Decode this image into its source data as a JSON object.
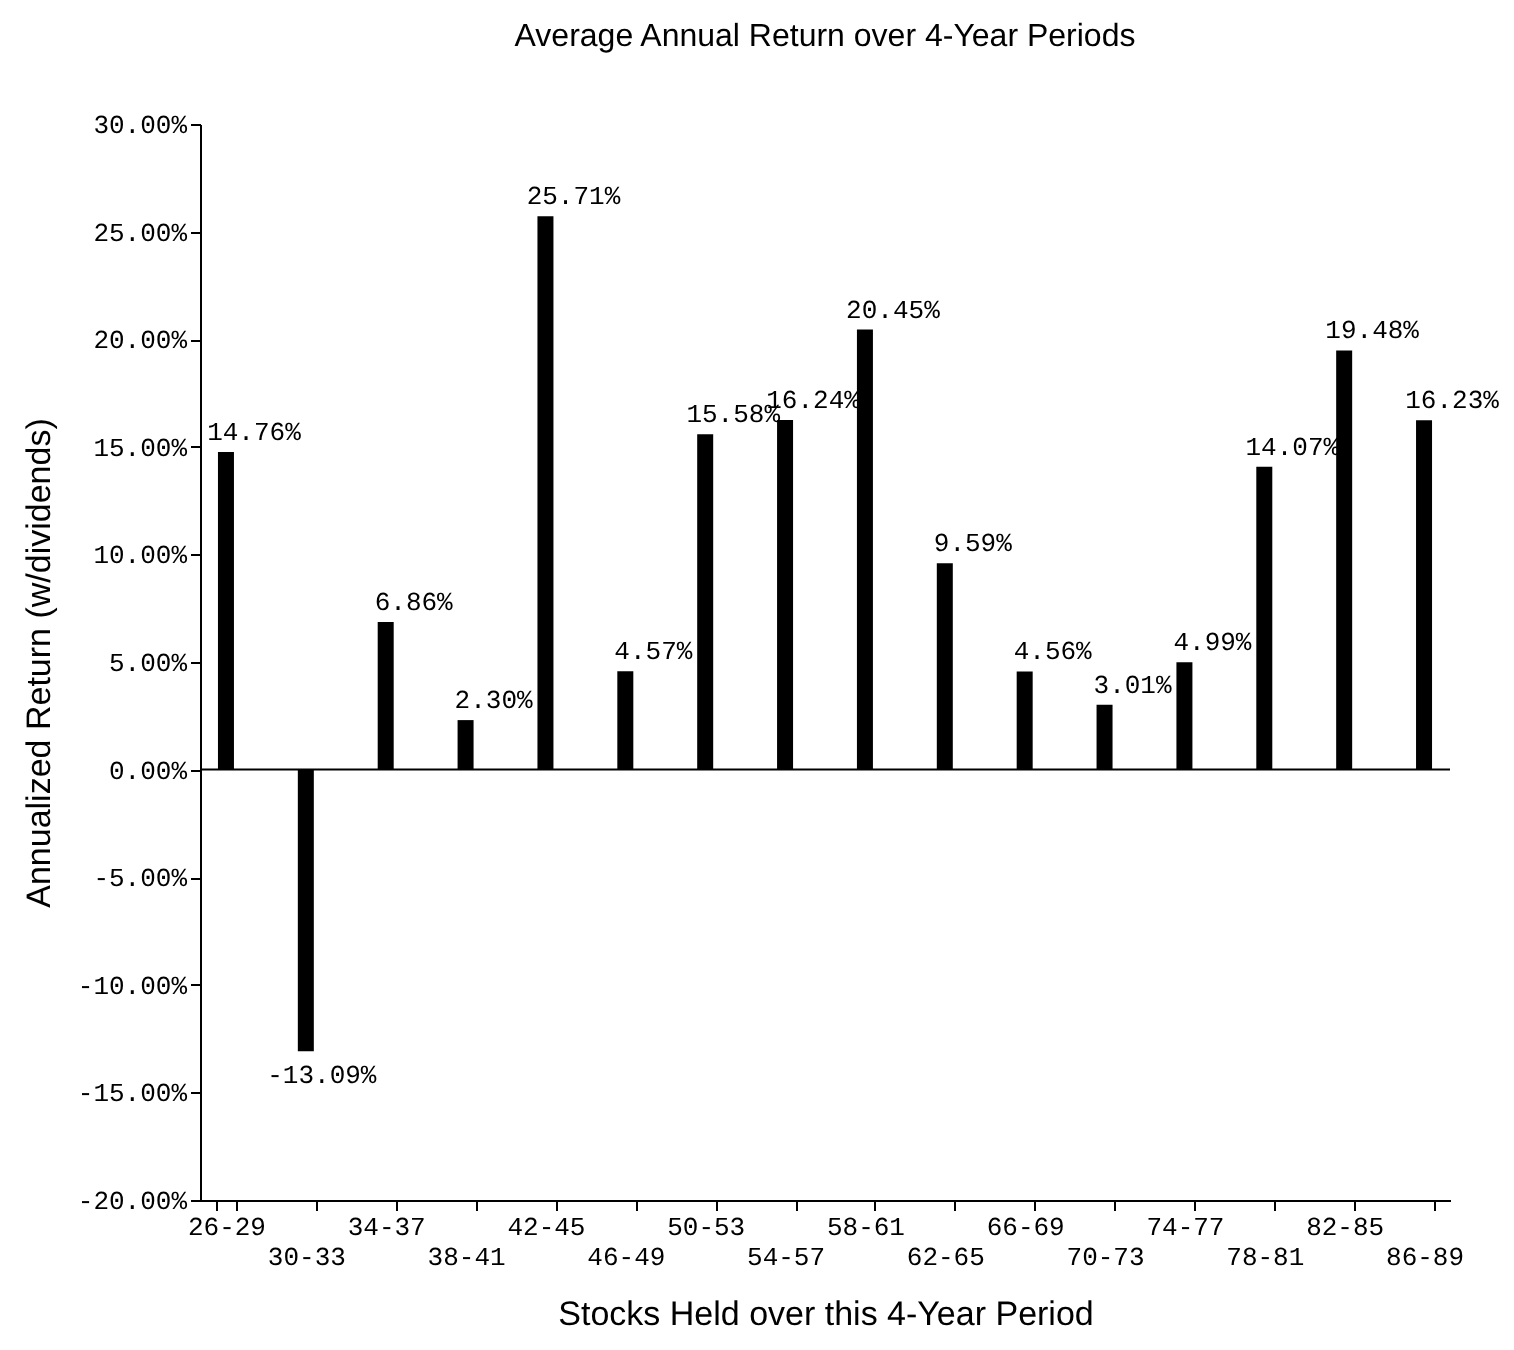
{
  "chart_data": {
    "type": "bar",
    "title": "Average Annual Return over 4-Year Periods",
    "xlabel": "Stocks Held over this 4-Year Period",
    "ylabel": "Annualized Return  (w/dividends)",
    "categories": [
      "26-29",
      "30-33",
      "34-37",
      "38-41",
      "42-45",
      "46-49",
      "50-53",
      "54-57",
      "58-61",
      "62-65",
      "66-69",
      "70-73",
      "74-77",
      "78-81",
      "82-85",
      "86-89"
    ],
    "values": [
      14.76,
      -13.09,
      6.86,
      2.3,
      25.71,
      4.57,
      15.58,
      16.24,
      20.45,
      9.59,
      4.56,
      3.01,
      4.99,
      14.07,
      19.48,
      16.23
    ],
    "value_labels": [
      "14.76%",
      "-13.09%",
      "6.86%",
      "2.30%",
      "25.71%",
      "4.57%",
      "15.58%",
      "16.24%",
      "20.45%",
      "9.59%",
      "4.56%",
      "3.01%",
      "4.99%",
      "14.07%",
      "19.48%",
      "16.23%"
    ],
    "color": "#000000",
    "ylim": [
      -20,
      30
    ],
    "yticks": [
      {
        "value": -20,
        "label": "-20.00%"
      },
      {
        "value": -15,
        "label": "-15.00%"
      },
      {
        "value": -10,
        "label": "-10.00%"
      },
      {
        "value": -5,
        "label": "-5.00%"
      },
      {
        "value": 0,
        "label": "0.00%"
      },
      {
        "value": 5,
        "label": "5.00%"
      },
      {
        "value": 10,
        "label": "10.00%"
      },
      {
        "value": 15,
        "label": "15.00%"
      },
      {
        "value": 20,
        "label": "20.00%"
      },
      {
        "value": 25,
        "label": "25.00%"
      },
      {
        "value": 30,
        "label": "30.00%"
      }
    ],
    "ref_lines": [
      {
        "axis": "y",
        "value": 0,
        "color": "#000000"
      }
    ]
  }
}
